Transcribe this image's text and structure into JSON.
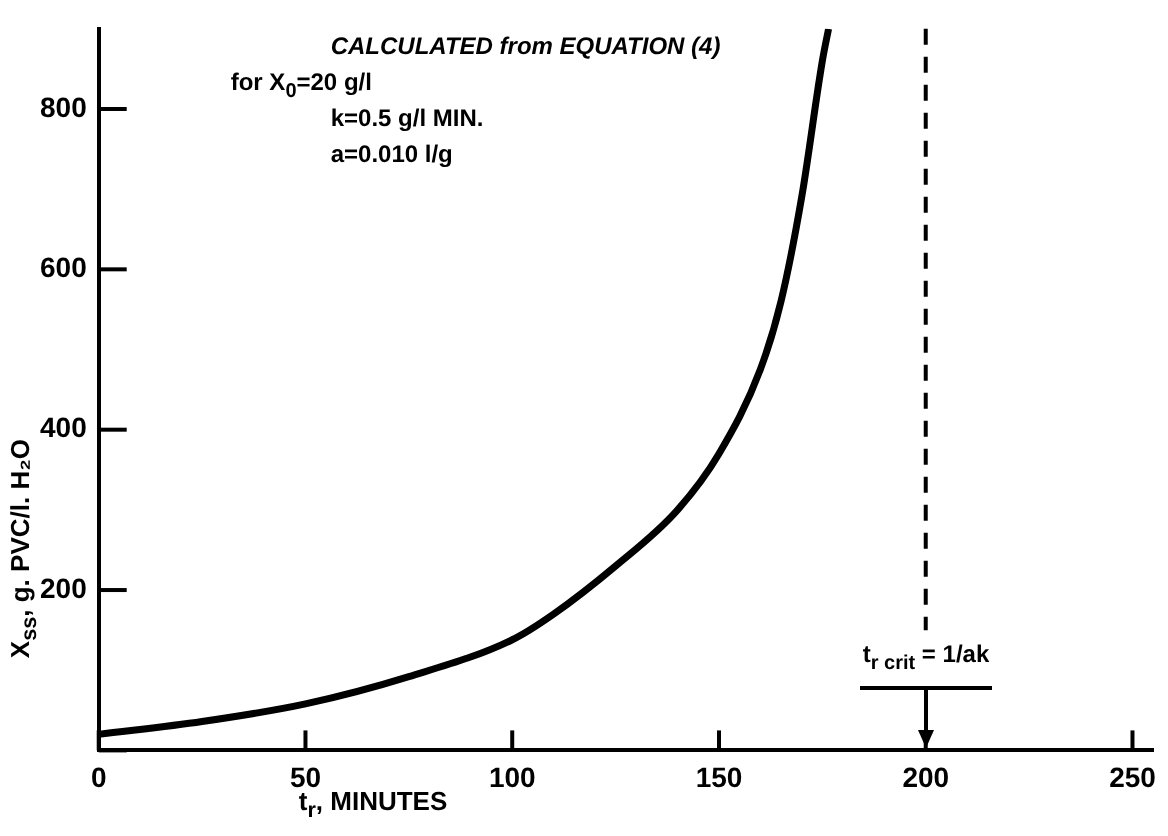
{
  "chart_data": {
    "type": "line",
    "xlabel": "t$_{r}$, MINUTES",
    "ylabel": "X$_{ss}$, g. PVC/l. H₂O",
    "x": [
      0,
      25,
      50,
      75,
      100,
      110,
      125,
      140,
      150,
      160,
      165,
      170,
      175,
      176.5
    ],
    "series": [
      {
        "color": "#000000",
        "values": [
          20,
          36,
          58,
          92,
          138,
          170,
          230,
          300,
          370,
          475,
          560,
          690,
          860,
          900
        ]
      }
    ],
    "xlim": [
      0,
      255
    ],
    "xticks": [
      0,
      50,
      100,
      150,
      200,
      250
    ],
    "ylim": [
      0,
      900
    ],
    "yticks": [
      {
        "value": 0,
        "label": null
      },
      200,
      400,
      600,
      800
    ],
    "grid": false,
    "legend": false,
    "marker": "none",
    "line_style": "solid",
    "ref_lines": [
      {
        "axis": "x",
        "value": 200,
        "line_style": "dashed",
        "color": "#000000"
      }
    ],
    "annotations": [
      "CALCULATED from EQUATION (4)",
      "for X$_{0}$=20 g/l",
      "k=0.5 g/l MIN.",
      "a=0.010 l/g",
      "t$_{r crit}$ = 1/ak"
    ]
  }
}
